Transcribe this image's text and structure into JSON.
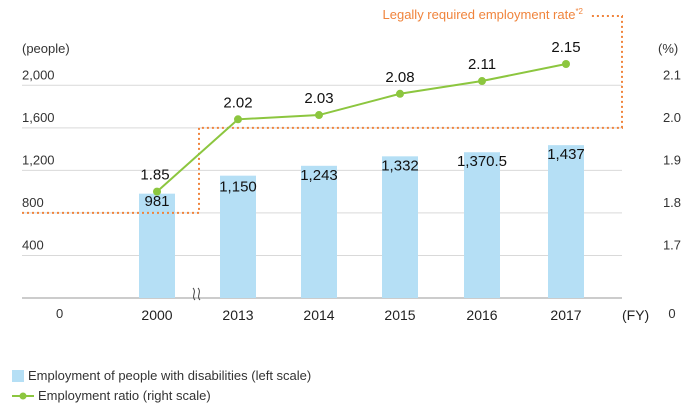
{
  "chart_data": {
    "type": "bar",
    "categories": [
      "2000",
      "2013",
      "2014",
      "2015",
      "2016",
      "2017"
    ],
    "x_unit": "(FY)",
    "left_axis": {
      "unit": "(people)",
      "ticks": [
        "0",
        "400",
        "800",
        "1,200",
        "1,600",
        "2,000"
      ],
      "range": [
        0,
        2200
      ]
    },
    "right_axis": {
      "unit": "(%)",
      "ticks": [
        "0",
        "1.7",
        "1.8",
        "1.9",
        "2.0",
        "2.1"
      ],
      "tick_values": [
        1.6,
        1.7,
        1.8,
        1.9,
        2.0,
        2.1
      ],
      "range": [
        1.6,
        2.15
      ]
    },
    "series": [
      {
        "name": "Employment of people with disabilities (left scale)",
        "type": "bar",
        "axis": "left",
        "values": [
          981,
          1150,
          1243,
          1332,
          1370.5,
          1437
        ],
        "labels": [
          "981",
          "1,150",
          "1,243",
          "1,332",
          "1,370.5",
          "1,437"
        ]
      },
      {
        "name": "Employment ratio (right scale)",
        "type": "line",
        "axis": "right",
        "values": [
          1.85,
          2.02,
          2.03,
          2.08,
          2.11,
          2.15
        ],
        "labels": [
          "1.85",
          "2.02",
          "2.03",
          "2.08",
          "2.11",
          "2.15"
        ]
      }
    ],
    "required_rate": {
      "label": "Legally required employment rate",
      "superscript": "*2",
      "segments": [
        {
          "from": "start",
          "to": "2000",
          "value": 1.8
        },
        {
          "from": "2000",
          "to": "end",
          "value": 2.0
        }
      ]
    },
    "axis_break": true,
    "grid": true,
    "colors": {
      "bar": "#b5dff5",
      "line": "#8cc63f",
      "required": "#f0843c",
      "grid": "#d9d9d9"
    }
  }
}
